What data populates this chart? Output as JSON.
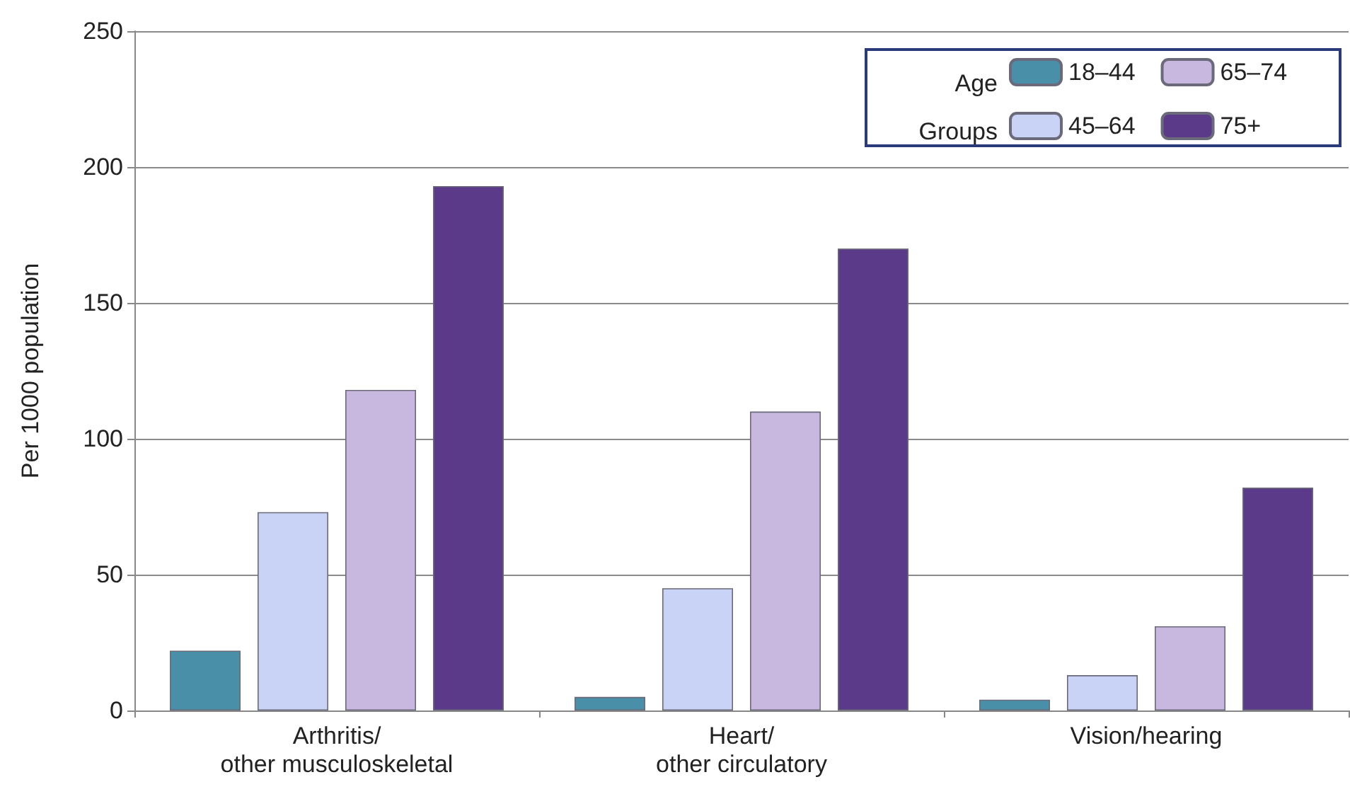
{
  "chart_data": {
    "type": "bar",
    "categories": [
      "Arthritis/\nother musculoskeletal",
      "Heart/\nother circulatory",
      "Vision/hearing"
    ],
    "series": [
      {
        "name": "18–44",
        "color": "#4a8fa8",
        "values": [
          22,
          5,
          4
        ]
      },
      {
        "name": "45–64",
        "color": "#c9d3f5",
        "values": [
          73,
          45,
          13
        ]
      },
      {
        "name": "65–74",
        "color": "#c8b8e0",
        "values": [
          118,
          110,
          31
        ]
      },
      {
        "name": "75+",
        "color": "#5b3a8a",
        "values": [
          193,
          170,
          82
        ]
      }
    ],
    "ylabel": "Per 1000 population",
    "legend_title": "Age\nGroups",
    "ylim": [
      0,
      250
    ],
    "yticks": [
      0,
      50,
      100,
      150,
      200,
      250
    ],
    "grid": "y",
    "legend": "top right"
  }
}
